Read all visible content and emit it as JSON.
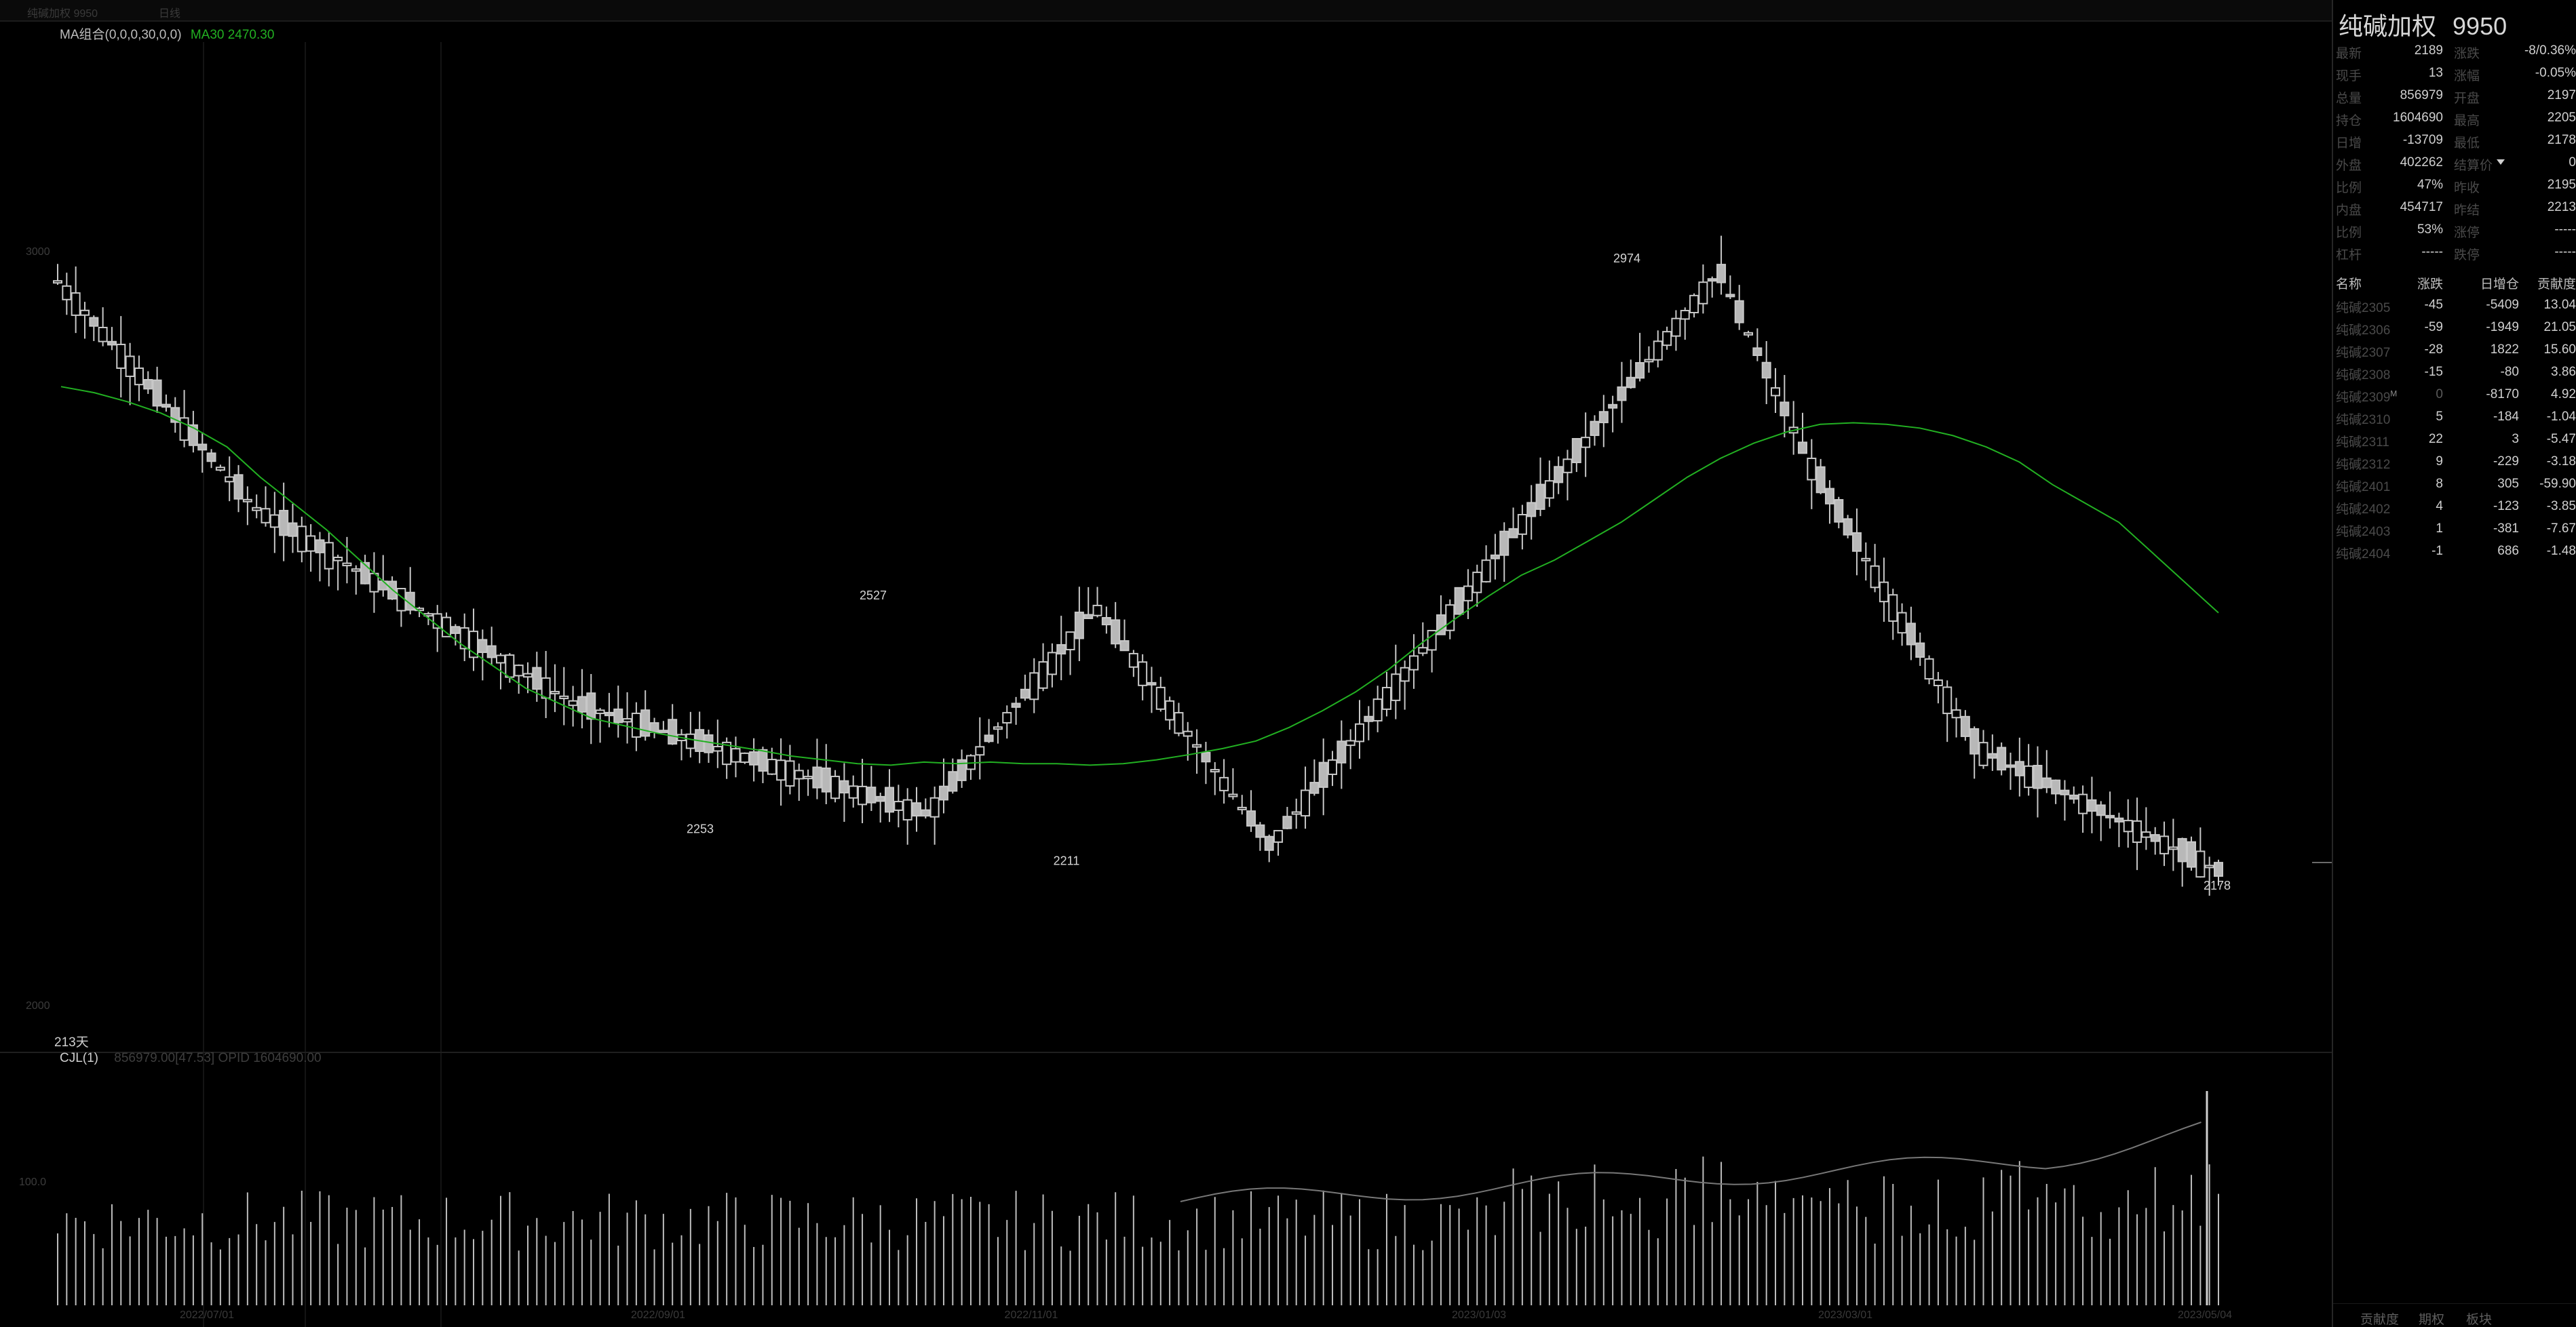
{
  "topbar": {
    "title": "纯碱加权 9950",
    "menu": "日线"
  },
  "indicators": {
    "ma_combo_label": "MA组合(0,0,0,30,0,0)",
    "ma30_label": "MA30 2470.30",
    "days_label": "213天",
    "cjl_label": "CJL(1)",
    "cjl_values": "856979.00[47.53] OPID 1604690.00"
  },
  "axis": {
    "price_ticks": [
      "3000",
      "2000"
    ],
    "volume_ticks": [
      "100.0"
    ],
    "dates": [
      "2022/07/01",
      "2022/09/01",
      "2022/11/01",
      "2023/01/03",
      "2023/03/01",
      "2023/05/04"
    ]
  },
  "annotations": {
    "peak1": "2527",
    "low1": "2253",
    "low2": "2211",
    "peak2": "2974",
    "last_low": "2178"
  },
  "quote": {
    "title": "纯碱加权",
    "code": "9950",
    "left": [
      {
        "label": "最新",
        "value": "2189"
      },
      {
        "label": "现手",
        "value": "13"
      },
      {
        "label": "总量",
        "value": "856979"
      },
      {
        "label": "持仓",
        "value": "1604690"
      },
      {
        "label": "日增",
        "value": "-13709"
      },
      {
        "label": "外盘",
        "value": "402262"
      },
      {
        "label": "比例",
        "value": "47%"
      },
      {
        "label": "内盘",
        "value": "454717"
      },
      {
        "label": "比例",
        "value": "53%"
      },
      {
        "label": "杠杆",
        "value": "-----"
      }
    ],
    "right": [
      {
        "label": "涨跌",
        "value": "-8/0.36%"
      },
      {
        "label": "涨幅",
        "value": "-0.05%"
      },
      {
        "label": "开盘",
        "value": "2197"
      },
      {
        "label": "最高",
        "value": "2205"
      },
      {
        "label": "最低",
        "value": "2178"
      },
      {
        "label": "结算价",
        "value": "0"
      },
      {
        "label": "昨收",
        "value": "2195"
      },
      {
        "label": "昨结",
        "value": "2213"
      },
      {
        "label": "涨停",
        "value": "-----"
      },
      {
        "label": "跌停",
        "value": "-----"
      }
    ]
  },
  "contracts": {
    "headers": [
      "名称",
      "涨跌",
      "日增仓",
      "贡献度"
    ],
    "rows": [
      {
        "name": "纯碱2305",
        "change": "-45",
        "oi": "-5409",
        "contrib": "13.04"
      },
      {
        "name": "纯碱2306",
        "change": "-59",
        "oi": "-1949",
        "contrib": "21.05"
      },
      {
        "name": "纯碱2307",
        "change": "-28",
        "oi": "1822",
        "contrib": "15.60"
      },
      {
        "name": "纯碱2308",
        "change": "-15",
        "oi": "-80",
        "contrib": "3.86"
      },
      {
        "name": "纯碱2309",
        "change": "0",
        "oi": "-8170",
        "contrib": "4.92"
      },
      {
        "name": "纯碱2310",
        "change": "5",
        "oi": "-184",
        "contrib": "-1.04"
      },
      {
        "name": "纯碱2311",
        "change": "22",
        "oi": "3",
        "contrib": "-5.47"
      },
      {
        "name": "纯碱2312",
        "change": "9",
        "oi": "-229",
        "contrib": "-3.18"
      },
      {
        "name": "纯碱2401",
        "change": "8",
        "oi": "305",
        "contrib": "-59.90"
      },
      {
        "name": "纯碱2402",
        "change": "4",
        "oi": "-123",
        "contrib": "-3.85"
      },
      {
        "name": "纯碱2403",
        "change": "1",
        "oi": "-381",
        "contrib": "-7.67"
      },
      {
        "name": "纯碱2404",
        "change": "-1",
        "oi": "686",
        "contrib": "-1.48"
      }
    ],
    "main_marker": "M"
  },
  "tabs": [
    "贡献度",
    "期权",
    "板块"
  ],
  "colors": {
    "background": "#000000",
    "ma30": "#22b022",
    "candle": "#c8c8c8",
    "up": "#ff4d4d",
    "down": "#2fd12f"
  },
  "chart_data": {
    "type": "candlestick",
    "series": [
      {
        "name": "MA30",
        "values": [
          2820,
          2812,
          2800,
          2785,
          2765,
          2740,
          2700,
          2665,
          2630,
          2590,
          2550,
          2515,
          2480,
          2450,
          2420,
          2400,
          2380,
          2370,
          2360,
          2352,
          2345,
          2338,
          2330,
          2325,
          2320,
          2318,
          2322,
          2320,
          2322,
          2320,
          2320,
          2318,
          2320,
          2325,
          2332,
          2340,
          2350,
          2368,
          2390,
          2415,
          2445,
          2480,
          2512,
          2542,
          2570,
          2590,
          2615,
          2640,
          2670,
          2700,
          2725,
          2745,
          2760,
          2770,
          2772,
          2770,
          2765,
          2755,
          2740,
          2720,
          2690,
          2665,
          2640,
          2600,
          2560,
          2520
        ]
      }
    ],
    "candles_approx": {
      "start": 2960,
      "peak1": 2527,
      "low1": 2253,
      "low2": 2211,
      "peak2": 2974,
      "last_low": 2178,
      "last_close": 2189
    },
    "ylim": [
      2000,
      3000
    ]
  }
}
